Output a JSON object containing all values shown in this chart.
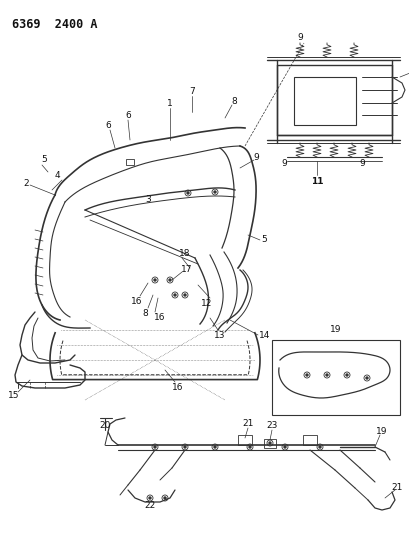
{
  "title": "6369  2400 A",
  "bg_color": "#ffffff",
  "lc": "#333333",
  "fig_width": 4.1,
  "fig_height": 5.33,
  "dpi": 100,
  "label_fontsize": 6.5,
  "title_fontsize": 8.5
}
